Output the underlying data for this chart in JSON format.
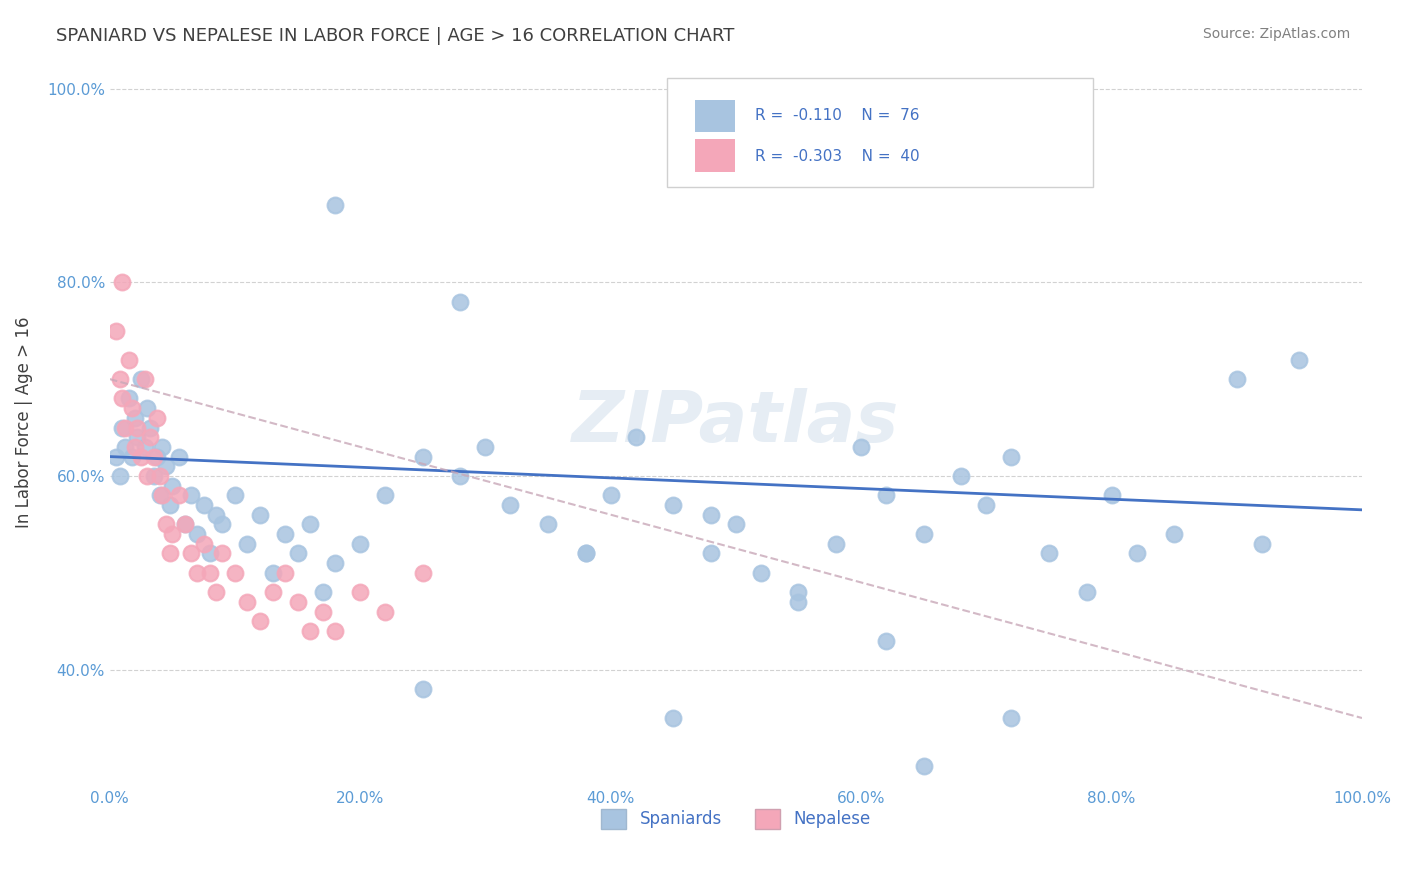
{
  "title": "SPANIARD VS NEPALESE IN LABOR FORCE | AGE > 16 CORRELATION CHART",
  "source": "Source: ZipAtlas.com",
  "ylabel": "In Labor Force | Age > 16",
  "xlim": [
    0.0,
    1.0
  ],
  "ylim": [
    0.28,
    1.03
  ],
  "x_ticks": [
    0.0,
    0.2,
    0.4,
    0.6,
    0.8,
    1.0
  ],
  "x_tick_labels": [
    "0.0%",
    "20.0%",
    "40.0%",
    "60.0%",
    "80.0%",
    "100.0%"
  ],
  "y_ticks": [
    0.4,
    0.6,
    0.8,
    1.0
  ],
  "y_tick_labels": [
    "40.0%",
    "60.0%",
    "80.0%",
    "100.0%"
  ],
  "legend_r_blue": "-0.110",
  "legend_n_blue": "76",
  "legend_r_pink": "-0.303",
  "legend_n_pink": "40",
  "spaniard_color": "#a8c4e0",
  "nepalese_color": "#f4a7b9",
  "trend_blue": "#4472c4",
  "trend_pink": "#c8a8b8",
  "watermark": "ZIPatlas",
  "blue_x": [
    0.005,
    0.008,
    0.01,
    0.012,
    0.015,
    0.018,
    0.02,
    0.022,
    0.025,
    0.028,
    0.03,
    0.032,
    0.035,
    0.038,
    0.04,
    0.042,
    0.045,
    0.048,
    0.05,
    0.055,
    0.06,
    0.065,
    0.07,
    0.075,
    0.08,
    0.085,
    0.09,
    0.1,
    0.11,
    0.12,
    0.13,
    0.14,
    0.15,
    0.16,
    0.17,
    0.18,
    0.2,
    0.22,
    0.25,
    0.28,
    0.3,
    0.32,
    0.35,
    0.38,
    0.4,
    0.42,
    0.45,
    0.48,
    0.5,
    0.52,
    0.55,
    0.58,
    0.6,
    0.62,
    0.65,
    0.68,
    0.7,
    0.72,
    0.75,
    0.78,
    0.8,
    0.85,
    0.9,
    0.95,
    0.18,
    0.28,
    0.38,
    0.48,
    0.55,
    0.62,
    0.72,
    0.82,
    0.92,
    0.25,
    0.45,
    0.65
  ],
  "blue_y": [
    0.62,
    0.6,
    0.65,
    0.63,
    0.68,
    0.62,
    0.66,
    0.64,
    0.7,
    0.63,
    0.67,
    0.65,
    0.6,
    0.62,
    0.58,
    0.63,
    0.61,
    0.57,
    0.59,
    0.62,
    0.55,
    0.58,
    0.54,
    0.57,
    0.52,
    0.56,
    0.55,
    0.58,
    0.53,
    0.56,
    0.5,
    0.54,
    0.52,
    0.55,
    0.48,
    0.51,
    0.53,
    0.58,
    0.62,
    0.6,
    0.63,
    0.57,
    0.55,
    0.52,
    0.58,
    0.64,
    0.57,
    0.52,
    0.55,
    0.5,
    0.48,
    0.53,
    0.63,
    0.58,
    0.54,
    0.6,
    0.57,
    0.62,
    0.52,
    0.48,
    0.58,
    0.54,
    0.7,
    0.72,
    0.88,
    0.78,
    0.52,
    0.56,
    0.47,
    0.43,
    0.35,
    0.52,
    0.53,
    0.38,
    0.35,
    0.3
  ],
  "pink_x": [
    0.005,
    0.008,
    0.01,
    0.012,
    0.015,
    0.018,
    0.02,
    0.022,
    0.025,
    0.028,
    0.03,
    0.032,
    0.035,
    0.038,
    0.04,
    0.042,
    0.045,
    0.048,
    0.05,
    0.055,
    0.06,
    0.065,
    0.07,
    0.075,
    0.08,
    0.085,
    0.09,
    0.1,
    0.11,
    0.12,
    0.13,
    0.14,
    0.15,
    0.16,
    0.17,
    0.18,
    0.2,
    0.22,
    0.25,
    0.01
  ],
  "pink_y": [
    0.75,
    0.7,
    0.68,
    0.65,
    0.72,
    0.67,
    0.63,
    0.65,
    0.62,
    0.7,
    0.6,
    0.64,
    0.62,
    0.66,
    0.6,
    0.58,
    0.55,
    0.52,
    0.54,
    0.58,
    0.55,
    0.52,
    0.5,
    0.53,
    0.5,
    0.48,
    0.52,
    0.5,
    0.47,
    0.45,
    0.48,
    0.5,
    0.47,
    0.44,
    0.46,
    0.44,
    0.48,
    0.46,
    0.5,
    0.8
  ]
}
